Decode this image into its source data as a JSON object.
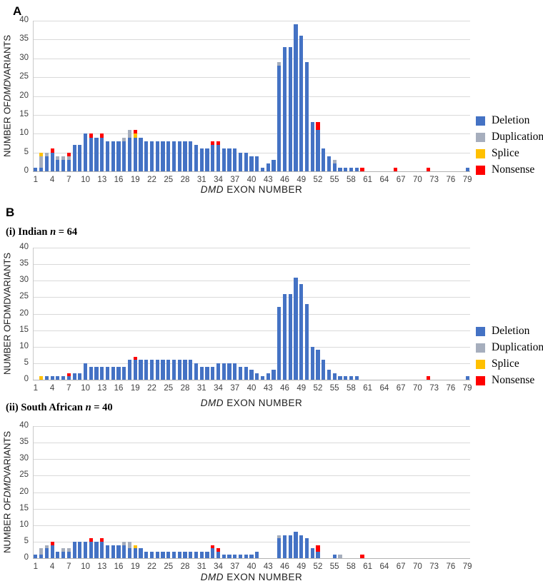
{
  "figure": {
    "panel_a_label": "A",
    "panel_b_label": "B",
    "subtitle_i": {
      "prefix": "(i) Indian ",
      "n": "n",
      "suffix": " = 64"
    },
    "subtitle_ii": {
      "prefix": "(ii) South African ",
      "n": "n",
      "suffix": " = 40"
    },
    "y_label": {
      "pre": "NUMBER OF ",
      "mid": "DMD",
      "post": " VARIANTS"
    },
    "x_label": {
      "mid": "DMD",
      "post": " EXON NUMBER"
    },
    "colors": {
      "deletion": "#4472C4",
      "duplication": "#A6AEBD",
      "splice": "#FFC000",
      "nonsense": "#FF0000",
      "gridline": "#D9D9D9"
    },
    "legend": {
      "items": [
        {
          "label": "Deletion",
          "color": "#4472C4"
        },
        {
          "label": "Duplication",
          "color": "#A6AEBD"
        },
        {
          "label": "Splice",
          "color": "#FFC000"
        },
        {
          "label": "Nonsense",
          "color": "#FF0000"
        }
      ]
    },
    "y_ticks": [
      0,
      5,
      10,
      15,
      20,
      25,
      30,
      35,
      40
    ],
    "x_ticks": [
      1,
      4,
      7,
      10,
      13,
      16,
      19,
      22,
      25,
      28,
      31,
      34,
      37,
      40,
      43,
      46,
      49,
      52,
      55,
      58,
      61,
      64,
      67,
      70,
      73,
      76,
      79
    ]
  },
  "chart_data": [
    {
      "type": "bar",
      "stacked": true,
      "panel": "A",
      "title": "All patients",
      "xlabel": "DMD EXON NUMBER",
      "ylabel": "NUMBER OF DMD VARIANTS",
      "ylim": [
        0,
        40
      ],
      "categories_note": "x = DMD exon number 1..79",
      "series": [
        {
          "name": "Deletion",
          "values": [
            1,
            1,
            4,
            5,
            3,
            3,
            3,
            7,
            7,
            10,
            9,
            9,
            9,
            8,
            8,
            8,
            8,
            9,
            9,
            9,
            8,
            8,
            8,
            8,
            8,
            8,
            8,
            8,
            8,
            7,
            6,
            6,
            7,
            7,
            6,
            6,
            6,
            5,
            5,
            4,
            4,
            1,
            2,
            3,
            28,
            33,
            33,
            39,
            36,
            29,
            13,
            11,
            6,
            4,
            2,
            1,
            1,
            1,
            1,
            0,
            0,
            0,
            0,
            0,
            0,
            0,
            0,
            0,
            0,
            0,
            0,
            0,
            0,
            0,
            0,
            0,
            0,
            0,
            1
          ]
        },
        {
          "name": "Duplication",
          "values": [
            0,
            3,
            1,
            0,
            1,
            1,
            1,
            0,
            0,
            0,
            0,
            0,
            0,
            0,
            0,
            0,
            1,
            2,
            0,
            0,
            0,
            0,
            0,
            0,
            0,
            0,
            0,
            0,
            0,
            0,
            0,
            0,
            0,
            0,
            0,
            0,
            0,
            0,
            0,
            0,
            0,
            0,
            0,
            0,
            1,
            0,
            0,
            0,
            0,
            0,
            0,
            0,
            0,
            0,
            1,
            0,
            0,
            0,
            0,
            0,
            0,
            0,
            0,
            0,
            0,
            0,
            0,
            0,
            0,
            0,
            0,
            0,
            0,
            0,
            0,
            0,
            0,
            0,
            0
          ]
        },
        {
          "name": "Splice",
          "values": [
            0,
            1,
            0,
            0,
            0,
            0,
            0,
            0,
            0,
            0,
            0,
            0,
            0,
            0,
            0,
            0,
            0,
            0,
            1,
            0,
            0,
            0,
            0,
            0,
            0,
            0,
            0,
            0,
            0,
            0,
            0,
            0,
            0,
            0,
            0,
            0,
            0,
            0,
            0,
            0,
            0,
            0,
            0,
            0,
            0,
            0,
            0,
            0,
            0,
            0,
            0,
            0,
            0,
            0,
            0,
            0,
            0,
            0,
            0,
            0,
            0,
            0,
            0,
            0,
            0,
            0,
            0,
            0,
            0,
            0,
            0,
            0,
            0,
            0,
            0,
            0,
            0,
            0,
            0
          ]
        },
        {
          "name": "Nonsense",
          "values": [
            0,
            0,
            0,
            1,
            0,
            0,
            1,
            0,
            0,
            0,
            1,
            0,
            1,
            0,
            0,
            0,
            0,
            0,
            1,
            0,
            0,
            0,
            0,
            0,
            0,
            0,
            0,
            0,
            0,
            0,
            0,
            0,
            1,
            1,
            0,
            0,
            0,
            0,
            0,
            0,
            0,
            0,
            0,
            0,
            0,
            0,
            0,
            0,
            0,
            0,
            0,
            2,
            0,
            0,
            0,
            0,
            0,
            0,
            0,
            1,
            0,
            0,
            0,
            0,
            0,
            1,
            0,
            0,
            0,
            0,
            0,
            1,
            0,
            0,
            0,
            0,
            0,
            0,
            0
          ]
        }
      ]
    },
    {
      "type": "bar",
      "stacked": true,
      "panel": "B(i)",
      "title": "(i) Indian n = 64",
      "xlabel": "DMD EXON NUMBER",
      "ylabel": "NUMBER OF DMD VARIANTS",
      "ylim": [
        0,
        40
      ],
      "series": [
        {
          "name": "Deletion",
          "values": [
            0,
            0,
            1,
            1,
            1,
            1,
            1,
            2,
            2,
            5,
            4,
            4,
            4,
            4,
            4,
            4,
            4,
            6,
            6,
            6,
            6,
            6,
            6,
            6,
            6,
            6,
            6,
            6,
            6,
            5,
            4,
            4,
            4,
            5,
            5,
            5,
            5,
            4,
            4,
            3,
            2,
            1,
            2,
            3,
            22,
            26,
            26,
            31,
            29,
            23,
            10,
            9,
            6,
            3,
            2,
            1,
            1,
            1,
            1,
            0,
            0,
            0,
            0,
            0,
            0,
            0,
            0,
            0,
            0,
            0,
            0,
            0,
            0,
            0,
            0,
            0,
            0,
            0,
            1
          ]
        },
        {
          "name": "Duplication",
          "values": [
            0,
            0,
            0,
            0,
            0,
            0,
            0,
            0,
            0,
            0,
            0,
            0,
            0,
            0,
            0,
            0,
            0,
            0,
            0,
            0,
            0,
            0,
            0,
            0,
            0,
            0,
            0,
            0,
            0,
            0,
            0,
            0,
            0,
            0,
            0,
            0,
            0,
            0,
            0,
            0,
            0,
            0,
            0,
            0,
            0,
            0,
            0,
            0,
            0,
            0,
            0,
            0,
            0,
            0,
            0,
            0,
            0,
            0,
            0,
            0,
            0,
            0,
            0,
            0,
            0,
            0,
            0,
            0,
            0,
            0,
            0,
            0,
            0,
            0,
            0,
            0,
            0,
            0,
            0
          ]
        },
        {
          "name": "Splice",
          "values": [
            0,
            1,
            0,
            0,
            0,
            0,
            0,
            0,
            0,
            0,
            0,
            0,
            0,
            0,
            0,
            0,
            0,
            0,
            0,
            0,
            0,
            0,
            0,
            0,
            0,
            0,
            0,
            0,
            0,
            0,
            0,
            0,
            0,
            0,
            0,
            0,
            0,
            0,
            0,
            0,
            0,
            0,
            0,
            0,
            0,
            0,
            0,
            0,
            0,
            0,
            0,
            0,
            0,
            0,
            0,
            0,
            0,
            0,
            0,
            0,
            0,
            0,
            0,
            0,
            0,
            0,
            0,
            0,
            0,
            0,
            0,
            0,
            0,
            0,
            0,
            0,
            0,
            0,
            0
          ]
        },
        {
          "name": "Nonsense",
          "values": [
            0,
            0,
            0,
            0,
            0,
            0,
            1,
            0,
            0,
            0,
            0,
            0,
            0,
            0,
            0,
            0,
            0,
            0,
            1,
            0,
            0,
            0,
            0,
            0,
            0,
            0,
            0,
            0,
            0,
            0,
            0,
            0,
            0,
            0,
            0,
            0,
            0,
            0,
            0,
            0,
            0,
            0,
            0,
            0,
            0,
            0,
            0,
            0,
            0,
            0,
            0,
            0,
            0,
            0,
            0,
            0,
            0,
            0,
            0,
            0,
            0,
            0,
            0,
            0,
            0,
            0,
            0,
            0,
            0,
            0,
            0,
            1,
            0,
            0,
            0,
            0,
            0,
            0,
            0
          ]
        }
      ]
    },
    {
      "type": "bar",
      "stacked": true,
      "panel": "B(ii)",
      "title": "(ii) South African n = 40",
      "xlabel": "DMD EXON NUMBER",
      "ylabel": "NUMBER OF DMD VARIANTS",
      "ylim": [
        0,
        40
      ],
      "series": [
        {
          "name": "Deletion",
          "values": [
            1,
            1,
            3,
            4,
            2,
            2,
            2,
            5,
            5,
            5,
            5,
            5,
            5,
            4,
            4,
            4,
            4,
            3,
            3,
            3,
            2,
            2,
            2,
            2,
            2,
            2,
            2,
            2,
            2,
            2,
            2,
            2,
            3,
            2,
            1,
            1,
            1,
            1,
            1,
            1,
            2,
            0,
            0,
            0,
            6,
            7,
            7,
            8,
            7,
            6,
            3,
            2,
            0,
            0,
            1,
            0,
            0,
            0,
            0,
            0,
            0,
            0,
            0,
            0,
            0,
            0,
            0,
            0,
            0,
            0,
            0,
            0,
            0,
            0,
            0,
            0,
            0,
            0,
            0
          ]
        },
        {
          "name": "Duplication",
          "values": [
            0,
            2,
            1,
            0,
            0,
            1,
            1,
            0,
            0,
            0,
            0,
            0,
            0,
            0,
            0,
            0,
            1,
            2,
            0,
            0,
            0,
            0,
            0,
            0,
            0,
            0,
            0,
            0,
            0,
            0,
            0,
            0,
            0,
            0,
            0,
            0,
            0,
            0,
            0,
            0,
            0,
            0,
            0,
            0,
            1,
            0,
            0,
            0,
            0,
            0,
            0,
            0,
            0,
            0,
            0,
            1,
            0,
            0,
            0,
            0,
            0,
            0,
            0,
            0,
            0,
            0,
            0,
            0,
            0,
            0,
            0,
            0,
            0,
            0,
            0,
            0,
            0,
            0,
            0
          ]
        },
        {
          "name": "Splice",
          "values": [
            0,
            0,
            0,
            0,
            0,
            0,
            0,
            0,
            0,
            0,
            0,
            0,
            0,
            0,
            0,
            0,
            0,
            0,
            1,
            0,
            0,
            0,
            0,
            0,
            0,
            0,
            0,
            0,
            0,
            0,
            0,
            0,
            0,
            0,
            0,
            0,
            0,
            0,
            0,
            0,
            0,
            0,
            0,
            0,
            0,
            0,
            0,
            0,
            0,
            0,
            0,
            0,
            0,
            0,
            0,
            0,
            0,
            0,
            0,
            0,
            0,
            0,
            0,
            0,
            0,
            0,
            0,
            0,
            0,
            0,
            0,
            0,
            0,
            0,
            0,
            0,
            0,
            0,
            0
          ]
        },
        {
          "name": "Nonsense",
          "values": [
            0,
            0,
            0,
            1,
            0,
            0,
            0,
            0,
            0,
            0,
            1,
            0,
            1,
            0,
            0,
            0,
            0,
            0,
            0,
            0,
            0,
            0,
            0,
            0,
            0,
            0,
            0,
            0,
            0,
            0,
            0,
            0,
            1,
            1,
            0,
            0,
            0,
            0,
            0,
            0,
            0,
            0,
            0,
            0,
            0,
            0,
            0,
            0,
            0,
            0,
            0,
            2,
            0,
            0,
            0,
            0,
            0,
            0,
            0,
            1,
            0,
            0,
            0,
            0,
            0,
            0,
            0,
            0,
            0,
            0,
            0,
            0,
            0,
            0,
            0,
            0,
            0,
            0,
            0
          ]
        }
      ]
    }
  ]
}
